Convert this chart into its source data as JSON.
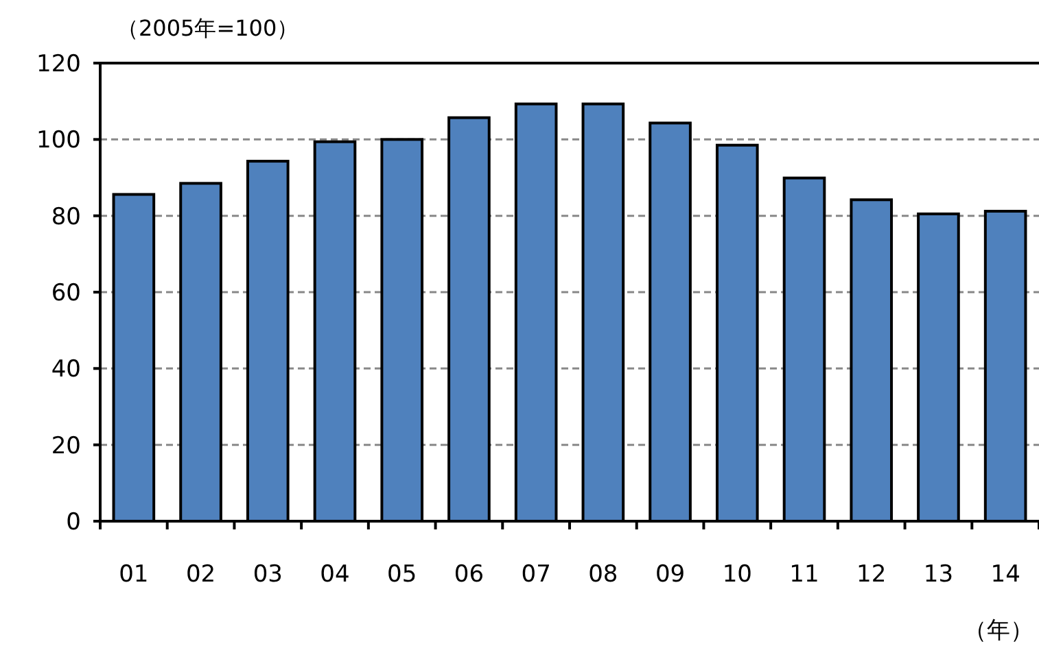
{
  "chart_data": {
    "type": "bar",
    "ylabel": "（2005年=100）",
    "xlabel": "（年）",
    "categories": [
      "01",
      "02",
      "03",
      "04",
      "05",
      "06",
      "07",
      "08",
      "09",
      "10",
      "11",
      "12",
      "13",
      "14"
    ],
    "values": [
      85.6,
      88.5,
      94.3,
      99.4,
      100,
      105.7,
      109.3,
      109.3,
      104.3,
      98.5,
      89.9,
      84.2,
      80.5,
      81.2
    ],
    "color": "#4f81bd",
    "ylim": [
      0,
      120
    ],
    "yticks": [
      0,
      20,
      40,
      60,
      80,
      100,
      120
    ],
    "grid": "y"
  }
}
